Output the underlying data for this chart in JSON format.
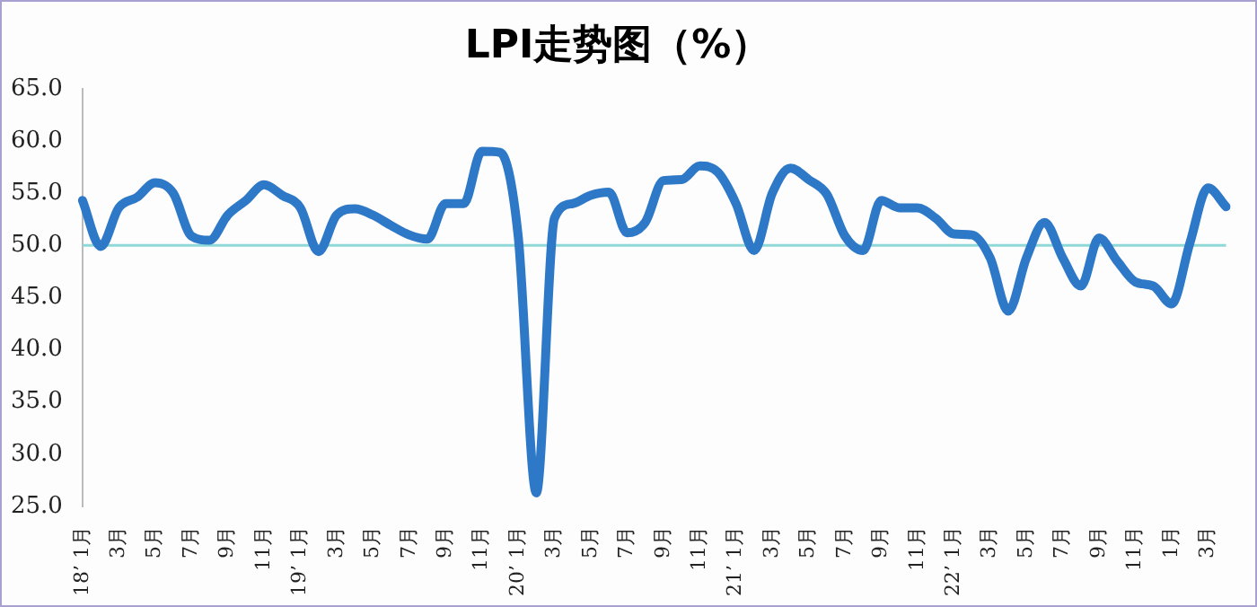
{
  "chart_data": {
    "type": "line",
    "title": "LPI走势图（%）",
    "categories": [
      "18’ 1月",
      null,
      "3月",
      null,
      "5月",
      null,
      "7月",
      null,
      "9月",
      null,
      "11月",
      null,
      "19’ 1月",
      null,
      "3月",
      null,
      "5月",
      null,
      "7月",
      null,
      "9月",
      null,
      "11月",
      null,
      "20’ 1月",
      null,
      "3月",
      null,
      "5月",
      null,
      "7月",
      null,
      "9月",
      null,
      "11月",
      null,
      "21’ 1月",
      null,
      "3月",
      null,
      "5月",
      null,
      "7月",
      null,
      "9月",
      null,
      "11月",
      null,
      "22’ 1月",
      null,
      "3月",
      null,
      "5月",
      null,
      "7月",
      null,
      "9月",
      null,
      "11月",
      null,
      "1月",
      null,
      "3月",
      null
    ],
    "series": [
      {
        "color": "#2e78c8",
        "values": [
          54.3,
          49.9,
          53.6,
          54.6,
          56.0,
          55.0,
          50.9,
          50.5,
          52.9,
          54.3,
          55.8,
          54.8,
          53.6,
          49.4,
          52.9,
          53.5,
          52.9,
          51.9,
          51.0,
          50.6,
          54.0,
          54.0,
          59.0,
          58.9,
          50.9,
          26.3,
          52.6,
          54.0,
          54.8,
          55.1,
          51.2,
          52.2,
          56.2,
          56.3,
          57.6,
          57.0,
          54.0,
          49.5,
          55.0,
          57.4,
          56.3,
          54.9,
          50.9,
          49.5,
          54.3,
          53.6,
          53.6,
          52.6,
          51.1,
          51.0,
          48.8,
          43.7,
          48.8,
          52.2,
          48.8,
          46.1,
          50.7,
          48.5,
          46.5,
          46.1,
          44.4,
          50.2,
          55.5,
          53.7
        ]
      }
    ],
    "ylim": [
      25,
      65
    ],
    "yticks": [
      {
        "value": 25,
        "label": "25.0"
      },
      {
        "value": 30,
        "label": "30.0"
      },
      {
        "value": 35,
        "label": "35.0"
      },
      {
        "value": 40,
        "label": "40.0"
      },
      {
        "value": 45,
        "label": "45.0"
      },
      {
        "value": 50,
        "label": "50.0"
      },
      {
        "value": 55,
        "label": "55.0"
      },
      {
        "value": 60,
        "label": "60.0"
      },
      {
        "value": 65,
        "label": "65.0"
      }
    ],
    "ref_lines": [
      {
        "axis": "y",
        "value": 50,
        "color": "#8fd8d8"
      }
    ],
    "grid": false,
    "legend": false,
    "marker": "none",
    "line_style": "solid"
  }
}
